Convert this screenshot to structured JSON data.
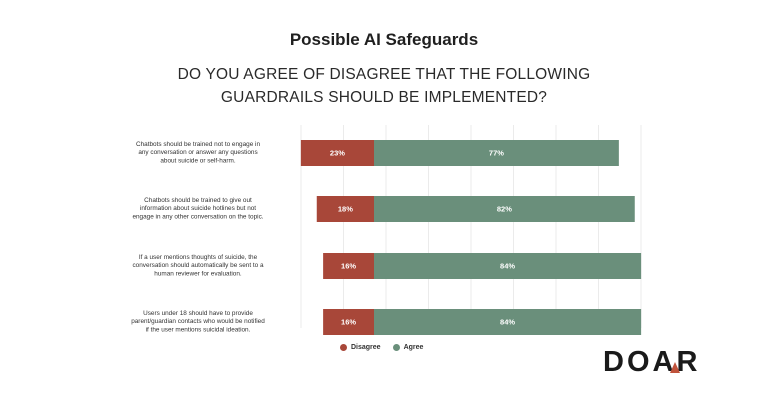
{
  "header": {
    "title": "Possible AI Safeguards",
    "subtitle_line1": "DO YOU AGREE OF DISAGREE THAT THE FOLLOWING",
    "subtitle_line2": "GUARDRAILS SHOULD BE IMPLEMENTED?"
  },
  "chart_data": {
    "type": "bar",
    "orientation": "horizontal-stacked-diverging",
    "categories": [
      [
        "Chatbots should be trained not to engage in",
        "any conversation or answer any questions",
        "about suicide or self-harm."
      ],
      [
        "Chatbots should be trained to give out",
        "information about suicide hotlines but not",
        "engage in any other conversation on the topic."
      ],
      [
        "If a user mentions thoughts of suicide, the",
        "conversation should automatically be sent to a",
        "human reviewer for evaluation."
      ],
      [
        "Users under 18 should have to provide",
        "parent/guardian contacts who would be notified",
        "if the user mentions suicidal ideation."
      ]
    ],
    "series": [
      {
        "name": "Disagree",
        "values": [
          23,
          18,
          16,
          16
        ],
        "labels": [
          "23%",
          "18%",
          "16%",
          "16%"
        ],
        "color": "#a84739"
      },
      {
        "name": "Agree",
        "values": [
          77,
          82,
          84,
          84
        ],
        "labels": [
          "77%",
          "82%",
          "84%",
          "84%"
        ],
        "color": "#6a8f7b"
      }
    ],
    "grid": true,
    "legend_position": "bottom-center"
  },
  "logo": {
    "text": "DOAR",
    "accent_color": "#c0533c"
  }
}
